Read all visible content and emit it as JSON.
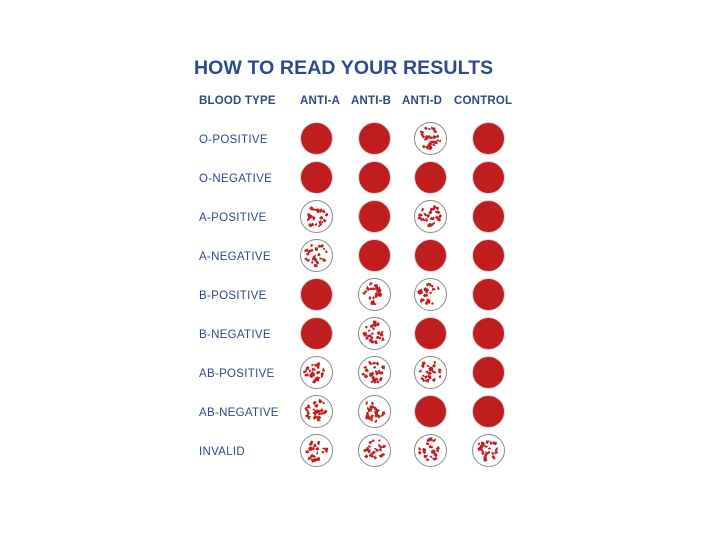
{
  "title": "HOW TO READ YOUR RESULTS",
  "headers": {
    "blood_type": "BLOOD TYPE",
    "columns": [
      "ANTI-A",
      "ANTI-B",
      "ANTI-D",
      "CONTROL"
    ]
  },
  "rows": [
    {
      "label": "O-POSITIVE",
      "results": [
        "solid",
        "solid",
        "agglutinated",
        "solid"
      ]
    },
    {
      "label": "O-NEGATIVE",
      "results": [
        "solid",
        "solid",
        "solid",
        "solid"
      ]
    },
    {
      "label": "A-POSITIVE",
      "results": [
        "agglutinated",
        "solid",
        "agglutinated",
        "solid"
      ]
    },
    {
      "label": "A-NEGATIVE",
      "results": [
        "agglutinated",
        "solid",
        "solid",
        "solid"
      ]
    },
    {
      "label": "B-POSITIVE",
      "results": [
        "solid",
        "agglutinated",
        "agglutinated",
        "solid"
      ]
    },
    {
      "label": "B-NEGATIVE",
      "results": [
        "solid",
        "agglutinated",
        "solid",
        "solid"
      ]
    },
    {
      "label": "AB-POSITIVE",
      "results": [
        "agglutinated",
        "agglutinated",
        "agglutinated",
        "solid"
      ]
    },
    {
      "label": "AB-NEGATIVE",
      "results": [
        "agglutinated",
        "agglutinated",
        "solid",
        "solid"
      ]
    },
    {
      "label": "INVALID",
      "results": [
        "agglutinated",
        "agglutinated",
        "agglutinated",
        "agglutinated"
      ]
    }
  ],
  "colors": {
    "text": "#2e4a8a",
    "blood": "#c01e1e",
    "ring": "#8a8a8a"
  }
}
